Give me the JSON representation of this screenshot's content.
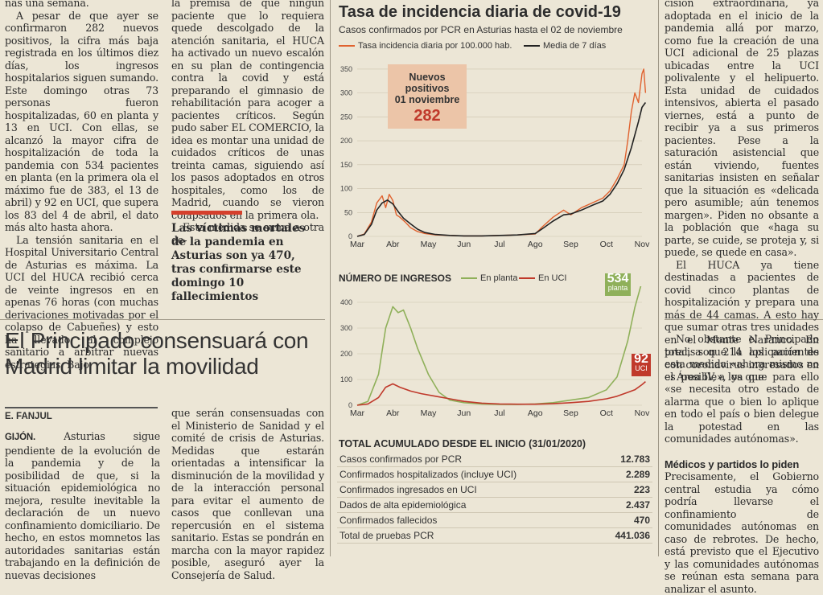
{
  "left_column": [
    "nas una semana.",
    "A pesar de que ayer se confirmaron 282 nuevos positivos, la cifra más baja registrada en los últimos diez días, los ingresos hospitalarios siguen sumando. Este domingo otras 73 personas fueron hospitalizadas, 60 en planta y 13 en UCI. Con ellas, se alcanzó la mayor cifra de hospitalización de toda la pandemia con 534 pacientes en planta (en la primera ola el máximo fue de 383, el 13 de abril) y 92 en UCI, que supera los 83 del 4 de abril, el dato más alto hasta ahora.",
    "La tensión sanitaria en el Hospital Universitario Central de Asturias es máxima. La UCI del HUCA recibió cerca de veinte ingresos en en apenas 76 horas (con muchas derivaciones motivadas por el colapso de Cabueñes) y esto ha llevado al complejo sanitario a arbitrar nuevas estrategias. Bajo"
  ],
  "middle_column": [
    "la premisa de que ningún paciente que lo requiera quede descolgado de la atención sanitaria, el HUCA ha activado un nuevo escalón en su plan de contingencia contra la covid y está preparando el gimnasio de rehabilitación para acoger a pacientes críticos. Según pudo saber EL COMERCIO, la idea es montar una unidad de cuidados críticos de unas treinta camas, siguiendo así los pasos adoptados en otros hospitales, como los de Madrid, cuando se vieron colapsados en la primera ola.",
    "Esta medida se suma a otra de-"
  ],
  "pull_quote": "Las víctimas mortales de la pandemia en Asturias son ya 470, tras confirmarse este domingo 10 fallecimientos",
  "right_column_top": [
    "cisión extraordinaria, ya adoptada en el inicio de la pandemia allá por marzo, como fue la creación de una UCI adicional de 25 plazas ubicadas entre la UCI polivalente y el helipuerto. Esta unidad de cuidados intensivos, abierta el pasado viernes, está a punto de recibir ya a sus primeros pacientes. Pese a la saturación asistencial que están viviendo, fuentes sanitarias insisten en señalar que la situación es «delicada pero asumible; aún tenemos margen». Piden no obsante a la población que «haga su parte, se cuide, se proteja y, si puede, se quede en casa».",
    "El HUCA ya tiene destinadas a pacientes de covid cinco plantas de hospitalización y prepara una más de 44 camas. A esto hay que sumar otras tres unidades en el Monte Naranco. En total, son 214 los pacientes con coronavirus ingresados en el Área IV, a los que"
  ],
  "right_column_bottom": [
    "No obstante el Principado precisa que la aplicación de esta medida «ahora mismo no es posible», ya que para ello «se necesita otro estado de alarma que o bien lo aplique en todo el país o bien delegue la potestad en las comunidades autónomas»."
  ],
  "right_subhead": "Médicos y partidos lo piden",
  "right_column_after_subhead": "Precisamente, el Gobierno central estudia ya cómo podría llevarse el confinamiento de comunidades autónomas en caso de rebrotes. De hecho, está previsto que el Ejecutivo y las comunidades autónomas se reúnan esta semana para analizar el asunto.",
  "headline": "El Principado consensuará con Madrid limitar la movilidad",
  "byline": "E. FANJUL",
  "dateline": "GIJÓN.",
  "article_col1": "Asturias sigue pendiente de la evolución de la pandemia y de la posibilidad de que, si la situación epidemiológica no mejora, resulte inevitable la declaración de un nuevo confinamiento domiciliario. De hecho, en estos momnetos las autoridades sanitarias están trabajando en la definición de nuevas decisiones",
  "article_col2": "que serán consensuadas con el Ministerio de Sanidad y el comité de crisis de Asturias. Medidas que estarán orientadas a intensificar la disminución de la movilidad y de la interacción personal para evitar el aumento de casos que conllevan una repercusión en el sistema sanitario. Estas se pondrán en marcha con la mayor rapidez posible, aseguró ayer la Consejería de Salud.",
  "graphic": {
    "title": "Tasa de incidencia diaria de covid-19",
    "subtitle": "Casos confirmados por PCR en Asturias hasta el 02 de noviembre",
    "legend_rate": "Tasa incidencia diaria por 100.000 hab.",
    "legend_avg": "Media de 7 días",
    "highlight_line1": "Nuevos",
    "highlight_line2": "positivos",
    "highlight_line3": "01 noviembre",
    "highlight_value": "282",
    "ingresos_title": "NÚMERO DE INGRESOS",
    "legend_planta": "En planta",
    "legend_uci": "En UCI",
    "badge_planta_value": "534",
    "badge_planta_label": "planta",
    "badge_uci_value": "92",
    "badge_uci_label": "UCI",
    "totals_title": "TOTAL ACUMULADO DESDE EL INICIO (31/01/2020)",
    "totals": [
      {
        "label": "Casos confirmados por PCR",
        "value": "12.783"
      },
      {
        "label": "Confirmados hospitalizados (incluye UCI)",
        "value": "2.289"
      },
      {
        "label": "Confirmados ingresados en UCI",
        "value": "223"
      },
      {
        "label": "Dados de alta epidemiológica",
        "value": "2.437"
      },
      {
        "label": "Confirmados fallecidos",
        "value": "470"
      },
      {
        "label": "Total de pruebas PCR",
        "value": "441.036"
      }
    ]
  },
  "colors": {
    "accent_red": "#d5402c",
    "line_orange": "#e0622f",
    "line_dark": "#222222",
    "line_green": "#8fb05a",
    "line_uci": "#c0392b"
  },
  "chart_data": [
    {
      "type": "line",
      "title": "Tasa de incidencia diaria de covid-19",
      "subtitle": "Casos confirmados por PCR en Asturias hasta el 02 de noviembre",
      "x_ticks": [
        "Mar",
        "Abr",
        "May",
        "Jun",
        "Jul",
        "Ago",
        "Sep",
        "Oct",
        "Nov"
      ],
      "ylim": [
        0,
        370
      ],
      "y_ticks": [
        0,
        50,
        100,
        150,
        200,
        250,
        300,
        350
      ],
      "series": [
        {
          "name": "Tasa incidencia diaria por 100.000 hab.",
          "x": [
            0,
            0.2,
            0.4,
            0.55,
            0.7,
            0.8,
            0.9,
            1.0,
            1.1,
            1.2,
            1.35,
            1.5,
            1.7,
            1.9,
            2.2,
            2.6,
            3.0,
            3.5,
            4.0,
            4.5,
            5.0,
            5.2,
            5.5,
            5.8,
            6.0,
            6.3,
            6.6,
            6.9,
            7.1,
            7.3,
            7.5,
            7.6,
            7.7,
            7.8,
            7.9,
            8.0,
            8.05,
            8.1
          ],
          "y": [
            0,
            5,
            30,
            70,
            85,
            60,
            88,
            75,
            45,
            40,
            30,
            18,
            10,
            6,
            3,
            2,
            1,
            1,
            2,
            3,
            5,
            20,
            40,
            55,
            45,
            60,
            70,
            80,
            95,
            120,
            150,
            200,
            260,
            300,
            280,
            340,
            350,
            300
          ]
        },
        {
          "name": "Media de 7 días",
          "x": [
            0,
            0.2,
            0.4,
            0.55,
            0.7,
            0.85,
            1.0,
            1.15,
            1.3,
            1.5,
            1.7,
            1.9,
            2.2,
            2.6,
            3.0,
            3.5,
            4.0,
            4.5,
            5.0,
            5.2,
            5.5,
            5.8,
            6.0,
            6.3,
            6.6,
            6.9,
            7.1,
            7.3,
            7.5,
            7.7,
            7.9,
            8.0,
            8.1
          ],
          "y": [
            0,
            4,
            25,
            55,
            70,
            76,
            68,
            52,
            38,
            26,
            15,
            8,
            4,
            2,
            1,
            1,
            2,
            3,
            6,
            16,
            32,
            45,
            47,
            55,
            65,
            74,
            88,
            110,
            140,
            185,
            240,
            270,
            280
          ]
        }
      ]
    },
    {
      "type": "line",
      "title": "NÚMERO DE INGRESOS",
      "x_ticks": [
        "Mar",
        "Abr",
        "May",
        "Jun",
        "Jul",
        "Ago",
        "Sep",
        "Oct",
        "Nov"
      ],
      "ylim": [
        0,
        450
      ],
      "y_ticks": [
        0,
        100,
        200,
        300,
        400
      ],
      "series": [
        {
          "name": "En planta",
          "x": [
            0,
            0.3,
            0.6,
            0.8,
            1.0,
            1.15,
            1.3,
            1.5,
            1.7,
            2.0,
            2.3,
            2.6,
            3.0,
            3.5,
            4.0,
            4.5,
            5.0,
            5.5,
            6.0,
            6.5,
            7.0,
            7.3,
            7.6,
            7.8,
            8.0,
            8.1
          ],
          "y": [
            0,
            15,
            120,
            300,
            383,
            360,
            370,
            300,
            220,
            120,
            50,
            20,
            10,
            5,
            3,
            3,
            5,
            10,
            20,
            30,
            60,
            110,
            250,
            380,
            480,
            534
          ]
        },
        {
          "name": "En UCI",
          "x": [
            0,
            0.3,
            0.6,
            0.8,
            1.0,
            1.2,
            1.5,
            1.8,
            2.2,
            2.6,
            3.0,
            3.5,
            4.0,
            4.5,
            5.0,
            5.5,
            6.0,
            6.5,
            7.0,
            7.3,
            7.6,
            7.8,
            8.0,
            8.1
          ],
          "y": [
            0,
            5,
            30,
            70,
            83,
            70,
            55,
            45,
            35,
            25,
            15,
            8,
            5,
            4,
            4,
            6,
            10,
            15,
            25,
            35,
            50,
            60,
            80,
            92
          ]
        }
      ]
    }
  ]
}
